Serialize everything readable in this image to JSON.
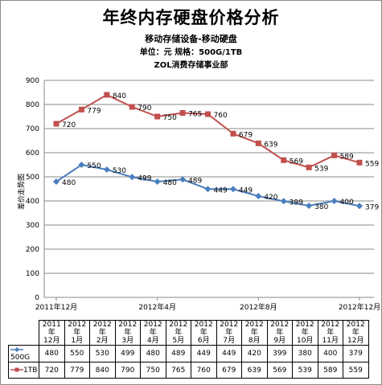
{
  "chart_data": {
    "type": "line",
    "title": "年终内存硬盘价格分析",
    "subtitle1": "移动存储设备-移动硬盘",
    "subtitle2": "单位：元     规格：500G/1TB",
    "subtitle3": "ZOL消费存储事业部",
    "ylabel": "差价走势图",
    "xlabel": "",
    "ylim": [
      0,
      900
    ],
    "yticks": [
      "0",
      "100",
      "200",
      "300",
      "400",
      "500",
      "600",
      "700",
      "800",
      "900"
    ],
    "xtick_labels": [
      "2011年12月",
      "2012年4月",
      "2012年8月",
      "2012年12月"
    ],
    "categories": [
      "2011年12月",
      "2012年1月",
      "2012年2月",
      "2012年3月",
      "2012年4月",
      "2012年5月",
      "2012年6月",
      "2012年7月",
      "2012年8月",
      "2012年9月",
      "2012年10月",
      "2012年11月",
      "2012年12月"
    ],
    "series": [
      {
        "name": "500G",
        "color": "#4a7ebf",
        "marker": "diamond",
        "values": [
          480,
          550,
          530,
          499,
          480,
          489,
          449,
          449,
          420,
          399,
          380,
          400,
          379
        ]
      },
      {
        "name": "1TB",
        "color": "#c0504d",
        "marker": "square",
        "values": [
          720,
          779,
          840,
          790,
          750,
          765,
          760,
          679,
          639,
          569,
          539,
          589,
          559
        ]
      }
    ],
    "grid": true,
    "legend": "data-table"
  }
}
